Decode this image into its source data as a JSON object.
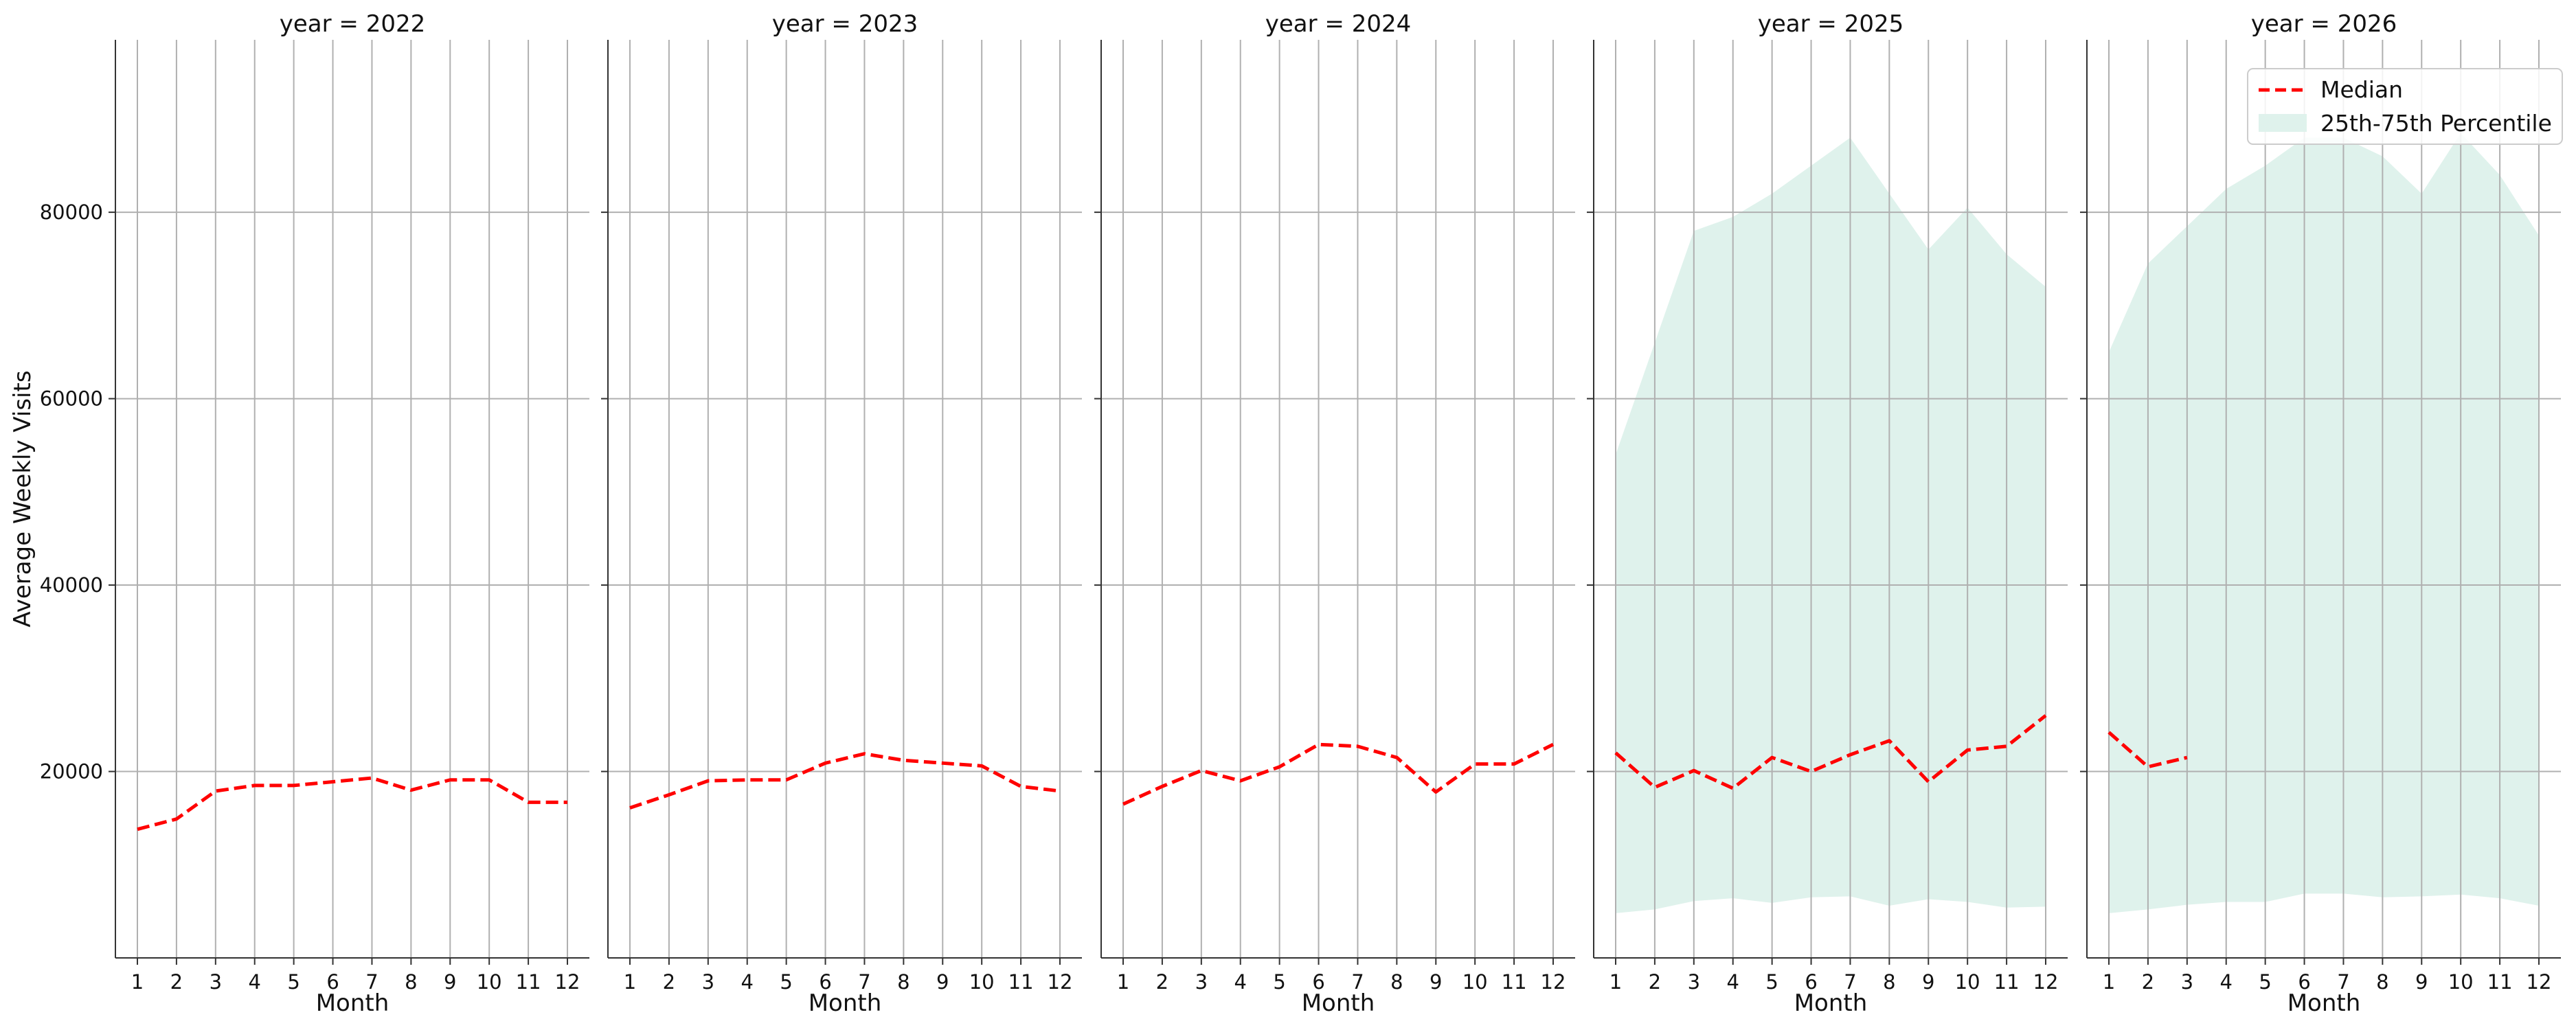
{
  "chart_data": {
    "type": "line",
    "ylabel": "Average Weekly Visits",
    "xlabel": "Month",
    "x": [
      1,
      2,
      3,
      4,
      5,
      6,
      7,
      8,
      9,
      10,
      11,
      12
    ],
    "ylim": [
      0,
      98500
    ],
    "y_ticks": [
      20000,
      40000,
      60000,
      80000
    ],
    "grid": true,
    "legend": {
      "placement": "top-right",
      "entries": [
        "Median",
        "25th-75th Percentile"
      ]
    },
    "colors": {
      "median": "#ff0000",
      "band": "#dff2ec"
    },
    "panels": [
      {
        "title": "year = 2022",
        "median": [
          13800,
          14900,
          17900,
          18500,
          18500,
          18900,
          19300,
          18000,
          19100,
          19100,
          16700,
          16700
        ],
        "p25": null,
        "p75": null
      },
      {
        "title": "year = 2023",
        "median": [
          16100,
          17500,
          19000,
          19100,
          19100,
          20900,
          21900,
          21200,
          20900,
          20600,
          18400,
          17900
        ],
        "p25": null,
        "p75": null
      },
      {
        "title": "year = 2024",
        "median": [
          16500,
          18400,
          20100,
          19000,
          20500,
          22900,
          22700,
          21500,
          17800,
          20800,
          20800,
          22900
        ],
        "p25": null,
        "p75": null
      },
      {
        "title": "year = 2025",
        "median": [
          22000,
          18300,
          20100,
          18200,
          21500,
          20000,
          21800,
          23300,
          18900,
          22300,
          22700,
          26000
        ],
        "p25": [
          4800,
          5200,
          6100,
          6400,
          5900,
          6500,
          6600,
          5600,
          6300,
          6000,
          5400,
          5500
        ],
        "p75": [
          54000,
          66000,
          78000,
          79500,
          82000,
          85000,
          88000,
          82000,
          76000,
          80500,
          75500,
          72000
        ]
      },
      {
        "title": "year = 2026",
        "median": [
          24200,
          20500,
          21500,
          null,
          null,
          null,
          null,
          null,
          null,
          null,
          null,
          null
        ],
        "p25": [
          4800,
          5200,
          5700,
          6000,
          6000,
          6900,
          6900,
          6500,
          6600,
          6800,
          6400,
          5600
        ],
        "p75": [
          65000,
          74500,
          78500,
          82500,
          85000,
          88000,
          88000,
          86000,
          82000,
          88500,
          84000,
          77500
        ]
      }
    ]
  }
}
